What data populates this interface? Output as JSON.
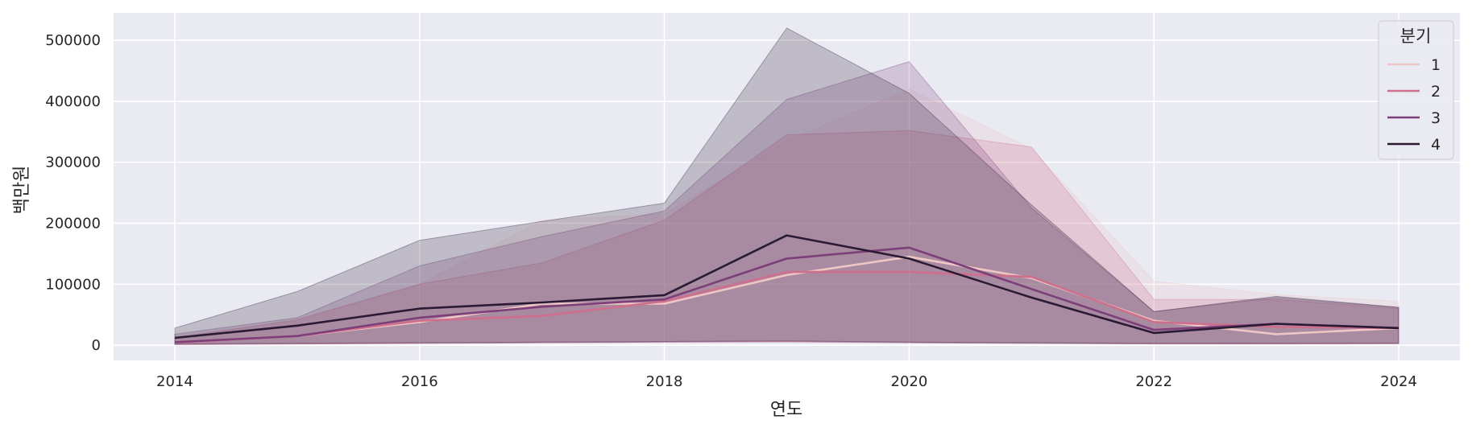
{
  "chart_data": {
    "type": "line",
    "xlabel": "연도",
    "ylabel": "백만원",
    "xlim": [
      2013.5,
      2024.5
    ],
    "ylim": [
      -25000,
      545000
    ],
    "x_ticks": [
      "2014",
      "2016",
      "2018",
      "2020",
      "2022",
      "2024"
    ],
    "y_ticks": [
      "0",
      "100000",
      "200000",
      "300000",
      "400000",
      "500000"
    ],
    "x": [
      2014,
      2015,
      2016,
      2017,
      2018,
      2019,
      2020,
      2021,
      2022,
      2023,
      2024
    ],
    "grid": true,
    "background": "#eaeaf2",
    "legend": {
      "title": "분기",
      "position": "top-right"
    },
    "series": [
      {
        "name": "1",
        "color": "#efc6c3",
        "values": [
          5000,
          15000,
          38000,
          68000,
          68000,
          115000,
          145000,
          110000,
          40000,
          18000,
          28000
        ],
        "band_upper": [
          15000,
          40000,
          100000,
          205000,
          215000,
          335000,
          420000,
          322000,
          105000,
          83000,
          72000
        ],
        "band_lower": [
          1000,
          2000,
          3000,
          4000,
          5000,
          6000,
          5000,
          4000,
          3000,
          2000,
          3000
        ]
      },
      {
        "name": "2",
        "color": "#cf6f8e",
        "values": [
          4000,
          15000,
          40000,
          48000,
          72000,
          120000,
          120000,
          112000,
          38000,
          30000,
          28000
        ],
        "band_upper": [
          12000,
          42000,
          100000,
          135000,
          205000,
          345000,
          352000,
          325000,
          75000,
          75000,
          60000
        ],
        "band_lower": [
          1000,
          2000,
          3000,
          4000,
          5000,
          5000,
          4000,
          3000,
          2000,
          2000,
          2000
        ]
      },
      {
        "name": "3",
        "color": "#7d3f79",
        "values": [
          5000,
          15000,
          45000,
          63000,
          75000,
          142000,
          160000,
          92000,
          25000,
          35000,
          28000
        ],
        "band_upper": [
          18000,
          45000,
          130000,
          178000,
          220000,
          403000,
          465000,
          225000,
          55000,
          78000,
          62000
        ],
        "band_lower": [
          1000,
          2000,
          3000,
          4000,
          5000,
          6000,
          4000,
          3000,
          2000,
          2000,
          3000
        ]
      },
      {
        "name": "4",
        "color": "#2a1a34",
        "values": [
          12000,
          32000,
          60000,
          70000,
          82000,
          180000,
          142000,
          78000,
          20000,
          35000,
          28000
        ],
        "band_upper": [
          28000,
          88000,
          172000,
          203000,
          233000,
          520000,
          413000,
          230000,
          55000,
          80000,
          62000
        ],
        "band_lower": [
          2000,
          3000,
          4000,
          5000,
          6000,
          7000,
          5000,
          4000,
          3000,
          3000,
          3000
        ]
      }
    ]
  }
}
